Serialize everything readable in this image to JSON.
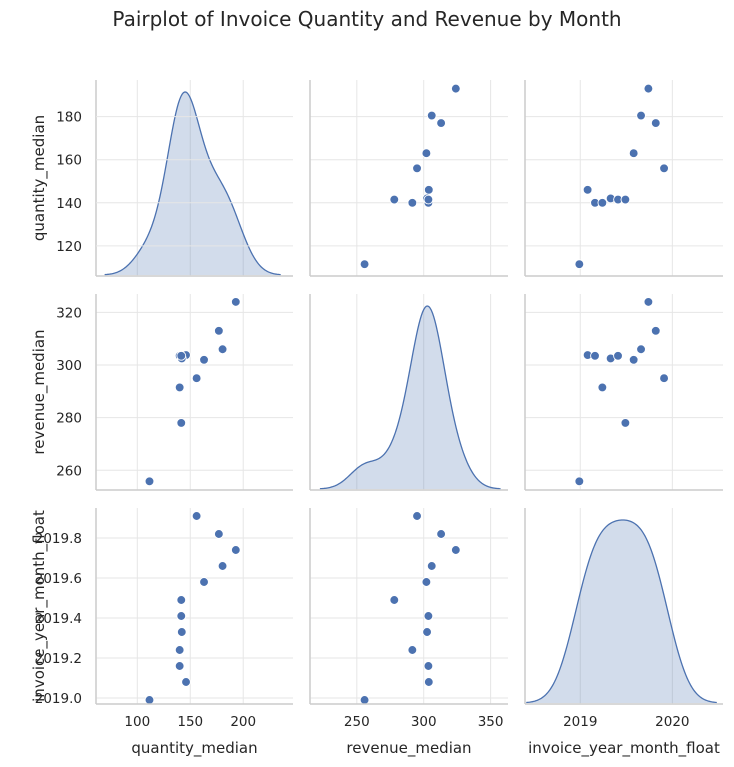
{
  "chart_data": {
    "type": "scatter",
    "title": "Pairplot of Invoice Quantity and Revenue by Month",
    "variables": [
      "quantity_median",
      "revenue_median",
      "invoice_year_month_float"
    ],
    "points": [
      {
        "quantity_median": 111.5,
        "revenue_median": 255.8,
        "invoice_year_month_float": 2018.99
      },
      {
        "quantity_median": 146.0,
        "revenue_median": 303.8,
        "invoice_year_month_float": 2019.08
      },
      {
        "quantity_median": 140.0,
        "revenue_median": 303.5,
        "invoice_year_month_float": 2019.16
      },
      {
        "quantity_median": 140.0,
        "revenue_median": 291.5,
        "invoice_year_month_float": 2019.24
      },
      {
        "quantity_median": 142.0,
        "revenue_median": 302.5,
        "invoice_year_month_float": 2019.33
      },
      {
        "quantity_median": 141.5,
        "revenue_median": 303.5,
        "invoice_year_month_float": 2019.41
      },
      {
        "quantity_median": 141.5,
        "revenue_median": 278.0,
        "invoice_year_month_float": 2019.49
      },
      {
        "quantity_median": 163.0,
        "revenue_median": 302.0,
        "invoice_year_month_float": 2019.58
      },
      {
        "quantity_median": 180.5,
        "revenue_median": 306.0,
        "invoice_year_month_float": 2019.66
      },
      {
        "quantity_median": 193.0,
        "revenue_median": 324.0,
        "invoice_year_month_float": 2019.74
      },
      {
        "quantity_median": 177.0,
        "revenue_median": 313.0,
        "invoice_year_month_float": 2019.82
      },
      {
        "quantity_median": 156.0,
        "revenue_median": 295.0,
        "invoice_year_month_float": 2019.91
      }
    ],
    "diagonal": "kde",
    "axes": {
      "quantity_median": {
        "range": [
          61,
          247
        ],
        "ticks": [
          100,
          150,
          200
        ],
        "tick_labels": [
          "100",
          "150",
          "200"
        ],
        "y_range": [
          106,
          197
        ],
        "y_ticks": [
          120,
          140,
          160,
          180
        ],
        "y_tick_labels": [
          "120",
          "140",
          "160",
          "180"
        ]
      },
      "revenue_median": {
        "range": [
          215,
          363
        ],
        "ticks": [
          250,
          300,
          350
        ],
        "tick_labels": [
          "250",
          "300",
          "350"
        ],
        "y_range": [
          252.5,
          327
        ],
        "y_ticks": [
          260,
          280,
          300,
          320
        ],
        "y_tick_labels": [
          "260",
          "280",
          "300",
          "320"
        ]
      },
      "invoice_year_month_float": {
        "range": [
          2018.4,
          2020.55
        ],
        "ticks": [
          2019,
          2020
        ],
        "tick_labels": [
          "2019",
          "2020"
        ],
        "y_range": [
          2018.97,
          2019.95
        ],
        "y_ticks": [
          2019.0,
          2019.2,
          2019.4,
          2019.6,
          2019.8
        ],
        "y_tick_labels": [
          "2019.0",
          "2019.2",
          "2019.4",
          "2019.6",
          "2019.8"
        ]
      }
    },
    "grid": true,
    "colors": {
      "marker": "#4c72b0",
      "grid": "#e6e6e6",
      "spine": "#cccccc",
      "text": "#262626"
    }
  }
}
